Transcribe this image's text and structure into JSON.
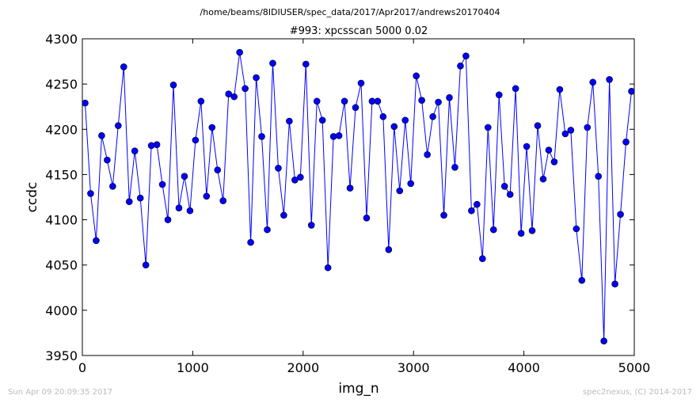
{
  "header": {
    "path": "/home/beams/8IDIUSER/spec_data/2017/Apr2017/andrews20170404",
    "title": "#993: xpcsscan 5000 0.02"
  },
  "footer": {
    "timestamp": "Sun Apr 09 20:09:35 2017",
    "credit": "spec2nexus, (C) 2014-2017"
  },
  "colors": {
    "series": "#0000ff",
    "axes": "#000000",
    "footer_text": "#bbbbbb"
  },
  "chart_data": {
    "type": "line",
    "xlabel": "img_n",
    "ylabel": "ccdc",
    "xlim": [
      0,
      5000
    ],
    "ylim": [
      3950,
      4300
    ],
    "xticks": [
      0,
      1000,
      2000,
      3000,
      4000,
      5000
    ],
    "yticks": [
      3950,
      4000,
      4050,
      4100,
      4150,
      4200,
      4250,
      4300
    ],
    "grid": false,
    "markers": "circle",
    "series": [
      {
        "x": [
          25,
          75,
          125,
          175,
          225,
          275,
          325,
          375,
          425,
          475,
          525,
          575,
          625,
          675,
          725,
          775,
          825,
          875,
          925,
          975,
          1025,
          1075,
          1125,
          1175,
          1225,
          1275,
          1325,
          1375,
          1425,
          1475,
          1525,
          1575,
          1625,
          1675,
          1725,
          1775,
          1825,
          1875,
          1925,
          1975,
          2025,
          2075,
          2125,
          2175,
          2225,
          2275,
          2325,
          2375,
          2425,
          2475,
          2525,
          2575,
          2625,
          2675,
          2725,
          2775,
          2825,
          2875,
          2925,
          2975,
          3025,
          3075,
          3125,
          3175,
          3225,
          3275,
          3325,
          3375,
          3425,
          3475,
          3525,
          3575,
          3625,
          3675,
          3725,
          3775,
          3825,
          3875,
          3925,
          3975,
          4025,
          4075,
          4125,
          4175,
          4225,
          4275,
          4325,
          4375,
          4425,
          4475,
          4525,
          4575,
          4625,
          4675,
          4725,
          4775,
          4825,
          4875,
          4925,
          4975
        ],
        "values": [
          4229,
          4129,
          4077,
          4193,
          4166,
          4137,
          4204,
          4269,
          4120,
          4176,
          4124,
          4050,
          4182,
          4183,
          4139,
          4100,
          4249,
          4113,
          4148,
          4110,
          4188,
          4231,
          4126,
          4202,
          4155,
          4121,
          4239,
          4236,
          4285,
          4245,
          4075,
          4257,
          4192,
          4089,
          4273,
          4157,
          4105,
          4209,
          4144,
          4147,
          4272,
          4094,
          4231,
          4210,
          4047,
          4192,
          4193,
          4231,
          4135,
          4224,
          4251,
          4102,
          4231,
          4231,
          4214,
          4067,
          4203,
          4132,
          4210,
          4140,
          4259,
          4232,
          4172,
          4214,
          4230,
          4105,
          4235,
          4158,
          4270,
          4281,
          4110,
          4117,
          4057,
          4202,
          4089,
          4238,
          4137,
          4128,
          4245,
          4085,
          4181,
          4088,
          4204,
          4145,
          4177,
          4164,
          4244,
          4195,
          4199,
          4090,
          4033,
          4202,
          4252,
          4148,
          3966,
          4255,
          4029,
          4106,
          4186,
          4242
        ]
      }
    ]
  }
}
